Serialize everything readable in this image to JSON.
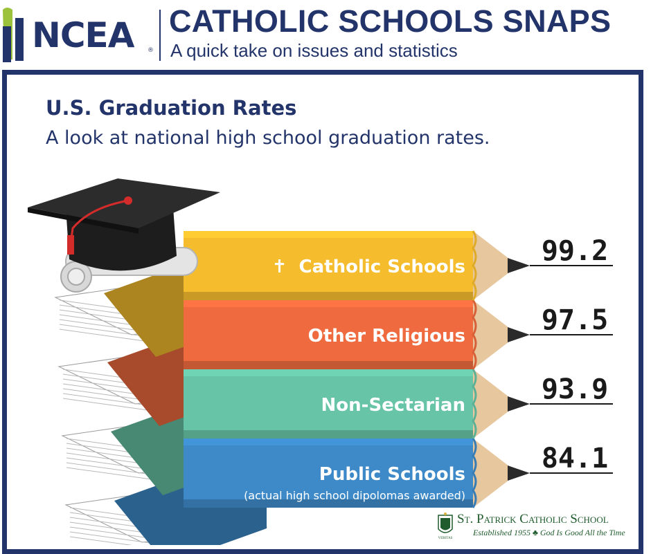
{
  "header": {
    "logo_text": "NCEA",
    "logo_reg": "®",
    "title": "CATHOLIC SCHOOLS SNAPS",
    "subtitle": "A quick take on issues and statistics"
  },
  "chart_data": {
    "type": "bar",
    "title": "U.S. Graduation Rates",
    "subtitle": "A look at national high school graduation rates.",
    "categories": [
      "Catholic Schools",
      "Other Religious",
      "Non-Sectarian",
      "Public Schools"
    ],
    "category_notes": [
      "",
      "",
      "",
      "(actual high school dipolomas awarded)"
    ],
    "values": [
      99.2,
      97.5,
      93.9,
      84.1
    ],
    "value_labels": [
      "99.2",
      "97.5",
      "93.9",
      "84.1"
    ],
    "category_icons": [
      "cross-icon",
      "",
      "",
      ""
    ],
    "colors": [
      "#f5bd2e",
      "#ef6b3f",
      "#67c4a6",
      "#3e8ac9"
    ],
    "xlabel": "",
    "ylabel": "",
    "grid": false,
    "legend": "none"
  },
  "footer": {
    "school_name": "St. Patrick Catholic School",
    "tagline": "Established 1955 ♣ God Is Good All the Time",
    "crest_text": "VERITAS"
  },
  "icons": {
    "cross": "✝",
    "grad_cap": "graduation-cap-icon",
    "diploma": "diploma-scroll-icon"
  }
}
